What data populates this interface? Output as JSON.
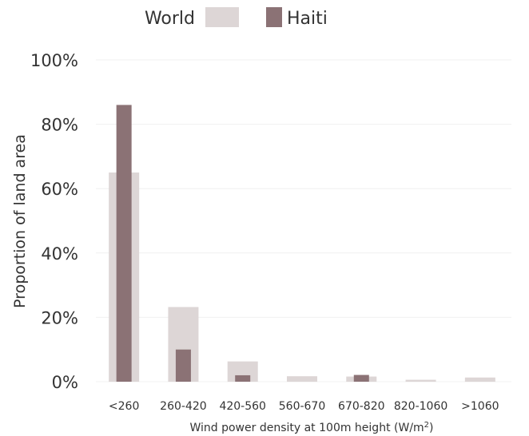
{
  "chart_data": {
    "type": "bar",
    "categories": [
      "<260",
      "260-420",
      "420-560",
      "560-670",
      "670-820",
      "820-1060",
      ">1060"
    ],
    "series": [
      {
        "name": "World",
        "color": "#ddd6d6",
        "values": [
          65,
          23.2,
          6.3,
          1.7,
          1.6,
          0.6,
          1.3
        ]
      },
      {
        "name": "Haiti",
        "color": "#8b7275",
        "values": [
          86,
          10,
          2,
          0,
          2.1,
          0,
          0
        ]
      }
    ],
    "xlabel": "Wind power density at 100m height (W/m",
    "xlabel_sup": "2",
    "xlabel_end": ")",
    "ylabel": "Proportion of land area",
    "ylim": [
      0,
      100
    ],
    "yticks": [
      "0%",
      "20%",
      "40%",
      "60%",
      "80%",
      "100%"
    ],
    "ytick_values": [
      0,
      20,
      40,
      60,
      80,
      100
    ],
    "grid": true,
    "legend": "top-center"
  }
}
